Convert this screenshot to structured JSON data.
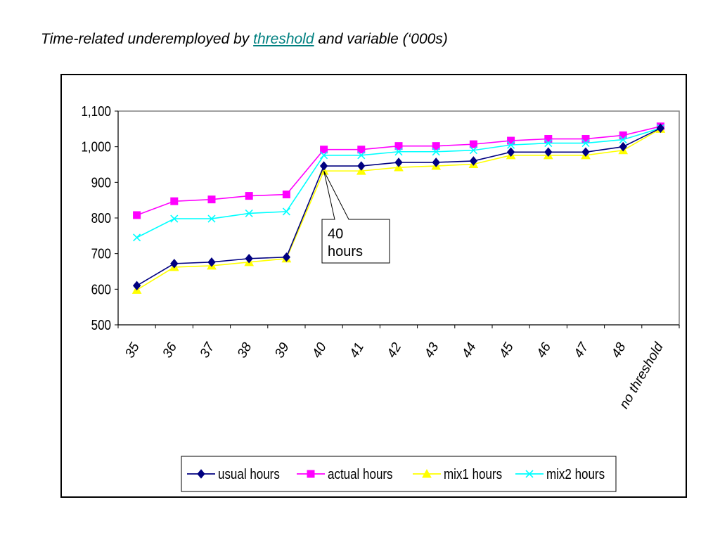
{
  "title": {
    "before": "Time-related underemployed by ",
    "highlight": "threshold",
    "after": " and variable (‘000s)"
  },
  "colors": {
    "usual": "#000080",
    "actual": "#FF00FF",
    "mix1": "#FFFF00",
    "mix2": "#00FFFF",
    "title_highlight": "#008080"
  },
  "chart_data": {
    "type": "line",
    "categories": [
      "35",
      "36",
      "37",
      "38",
      "39",
      "40",
      "41",
      "42",
      "43",
      "44",
      "45",
      "46",
      "47",
      "48",
      "no threshold"
    ],
    "series": [
      {
        "name": "usual hours",
        "marker": "diamond",
        "color": "#000080",
        "values": [
          610,
          672,
          676,
          686,
          690,
          946,
          946,
          956,
          956,
          960,
          985,
          985,
          985,
          1000,
          1052
        ]
      },
      {
        "name": "actual hours",
        "marker": "square",
        "color": "#FF00FF",
        "values": [
          808,
          847,
          852,
          862,
          866,
          992,
          992,
          1002,
          1002,
          1007,
          1017,
          1022,
          1022,
          1032,
          1057
        ]
      },
      {
        "name": "mix1 hours",
        "marker": "triangle",
        "color": "#FFFF00",
        "values": [
          598,
          662,
          666,
          676,
          686,
          932,
          932,
          942,
          946,
          951,
          976,
          976,
          976,
          990,
          1050
        ]
      },
      {
        "name": "mix2 hours",
        "marker": "x",
        "color": "#00FFFF",
        "values": [
          745,
          798,
          798,
          813,
          818,
          976,
          976,
          986,
          986,
          990,
          1005,
          1010,
          1010,
          1020,
          1052
        ]
      }
    ],
    "yticks": [
      "500",
      "600",
      "700",
      "800",
      "900",
      "1,000",
      "1,100"
    ],
    "ylim": [
      500,
      1100
    ],
    "grid": false,
    "legend_position": "bottom",
    "annotation": {
      "line1": "40",
      "line2": "hours",
      "points_to_category": "40",
      "points_to_value": 932
    }
  }
}
